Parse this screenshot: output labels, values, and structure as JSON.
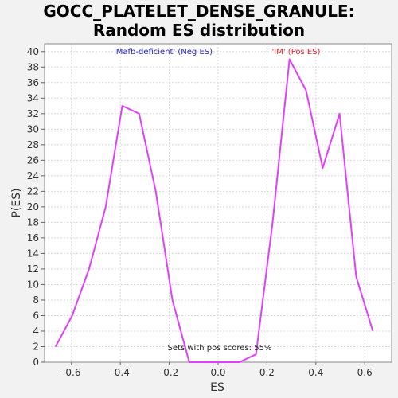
{
  "chart_data": {
    "type": "line",
    "title_lines": [
      "GOCC_PLATELET_DENSE_GRANULE:",
      "Random ES distribution"
    ],
    "xlabel": "ES",
    "ylabel": "P(ES)",
    "xlim": [
      -0.71,
      0.71
    ],
    "ylim": [
      0,
      41
    ],
    "xticks": [
      -0.6,
      -0.4,
      -0.2,
      0.0,
      0.2,
      0.4,
      0.6
    ],
    "xtick_labels": [
      "-0.6",
      "-0.4",
      "-0.2",
      "0.0",
      "0.2",
      "0.4",
      "0.6"
    ],
    "yticks": [
      0,
      2,
      4,
      6,
      8,
      10,
      12,
      14,
      16,
      18,
      20,
      22,
      24,
      26,
      28,
      30,
      32,
      34,
      36,
      38,
      40
    ],
    "grid": true,
    "line_color": "#e040fb",
    "series": [
      {
        "x": [
          -0.665,
          -0.597,
          -0.528,
          -0.46,
          -0.392,
          -0.323,
          -0.255,
          -0.187,
          -0.118,
          -0.05,
          0.018,
          0.087,
          0.155,
          0.223,
          0.292,
          0.36,
          0.428,
          0.497,
          0.565,
          0.633
        ],
        "y": [
          2,
          6,
          12,
          20,
          33,
          32,
          22,
          8,
          0,
          0,
          0,
          0,
          1,
          18,
          39,
          35,
          25,
          32,
          11,
          4
        ]
      }
    ],
    "annotations": {
      "neg_label": "'Mafb-deficient' (Neg ES)",
      "neg_color": "#2222cc",
      "pos_label": "'IM' (Pos ES)",
      "pos_color": "#e8202a",
      "bottom_note": "Sets with pos scores: 55%"
    }
  }
}
